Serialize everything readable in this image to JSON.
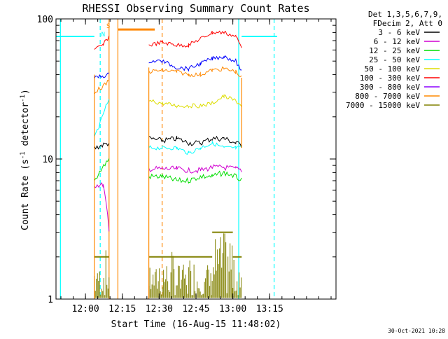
{
  "window": {
    "width": 640,
    "height": 480
  },
  "chart_data": {
    "type": "line",
    "title": "RHESSI Observing Summary Count Rates",
    "xlabel": "Start Time (16-Aug-15 11:48:02)",
    "ylabel": "Count Rate (s",
    "ylabel_sup1": "-1",
    "ylabel_mid": " detector",
    "ylabel_sup2": "-1",
    "ylabel_end": ")",
    "yscale": "log",
    "ylim": [
      1,
      100
    ],
    "xlim_minutes": [
      11.8,
      13.7
    ],
    "x_ticks": [
      {
        "label": "12:00",
        "value": 12.0
      },
      {
        "label": "12:15",
        "value": 12.25
      },
      {
        "label": "12:30",
        "value": 12.5
      },
      {
        "label": "12:45",
        "value": 12.75
      },
      {
        "label": "13:00",
        "value": 13.0
      },
      {
        "label": "13:15",
        "value": 13.25
      }
    ],
    "y_ticks": [
      {
        "label": "1",
        "value": 1
      },
      {
        "label": "10",
        "value": 10
      },
      {
        "label": "100",
        "value": 100
      }
    ],
    "legend_header": [
      "Det 1,3,5,6,7,9,",
      "FDecim 2, Att 0"
    ],
    "series": [
      {
        "name": "3 - 6 keV",
        "color": "#000000",
        "x": [
          12.06,
          12.16,
          12.43,
          12.52,
          12.62,
          12.7,
          12.78,
          12.86,
          12.94,
          13.02,
          13.06
        ],
        "y": [
          12,
          13,
          14,
          13.5,
          14,
          13,
          13,
          14,
          14,
          13,
          12.5
        ]
      },
      {
        "name": "6 - 12 keV",
        "color": "#d000d0",
        "x": [
          12.06,
          12.12,
          12.16,
          12.43,
          12.52,
          12.62,
          12.7,
          12.78,
          12.86,
          12.94,
          13.02,
          13.06
        ],
        "y": [
          6.5,
          6.5,
          3,
          8.5,
          8.5,
          8.5,
          8.3,
          8.3,
          8.7,
          8.7,
          8.5,
          8.3
        ]
      },
      {
        "name": "12 - 25 keV",
        "color": "#00dd00",
        "x": [
          12.06,
          12.16,
          12.43,
          12.52,
          12.62,
          12.7,
          12.78,
          12.86,
          12.94,
          13.02,
          13.06
        ],
        "y": [
          7,
          10,
          7.5,
          7.5,
          7,
          7,
          7.5,
          7.5,
          8,
          7.5,
          7
        ]
      },
      {
        "name": "25 - 50 keV",
        "color": "#00ffff",
        "x": [
          12.06,
          12.1,
          12.14,
          12.16,
          12.43,
          12.52,
          12.62,
          12.7,
          12.78,
          12.86,
          12.94,
          13.02,
          13.06
        ],
        "y": [
          14,
          18,
          24,
          26,
          12,
          12,
          12,
          11,
          12,
          13,
          12,
          12,
          12
        ]
      },
      {
        "name": "50 - 100 keV",
        "color": "#dddd00",
        "x": [
          12.43,
          12.52,
          12.62,
          12.7,
          12.78,
          12.86,
          12.94,
          13.02,
          13.06
        ],
        "y": [
          26,
          25,
          24,
          24,
          24,
          25,
          28,
          26,
          24
        ]
      },
      {
        "name": "100 - 300 keV",
        "color": "#ff0000",
        "x": [
          12.06,
          12.12,
          12.16,
          12.43,
          12.52,
          12.62,
          12.7,
          12.78,
          12.86,
          12.94,
          13.02,
          13.06
        ],
        "y": [
          60,
          65,
          75,
          65,
          68,
          65,
          65,
          72,
          80,
          80,
          75,
          62
        ]
      },
      {
        "name": "300 - 800 keV",
        "color": "#8b00ff",
        "x": [],
        "y": []
      },
      {
        "name": "800 - 7000 keV",
        "color": "#ff8800",
        "x": [
          12.06,
          12.12,
          12.16,
          12.43,
          12.52,
          12.62,
          12.7,
          12.78,
          12.86,
          12.94,
          13.02,
          13.06
        ],
        "y": [
          30,
          33,
          36,
          42,
          43,
          42,
          40,
          40,
          43,
          44,
          42,
          38
        ]
      },
      {
        "name": "7000 - 15000 keV",
        "color": "#808000",
        "x": [
          12.06,
          12.16,
          12.43,
          12.6,
          12.75,
          12.86,
          12.94,
          13.06
        ],
        "y": [
          2,
          2,
          2,
          2,
          2,
          2.5,
          3,
          2
        ]
      }
    ],
    "extra_series": [
      {
        "id": "blue-3-6-offset",
        "color": "#0000ff",
        "x": [
          12.06,
          12.16,
          12.43,
          12.52,
          12.62,
          12.7,
          12.78,
          12.86,
          12.94,
          13.02,
          13.06
        ],
        "y": [
          38,
          40,
          50,
          50,
          45,
          44,
          48,
          52,
          54,
          50,
          42
        ]
      }
    ],
    "annotations": [
      {
        "text": "N",
        "color": "#00ffff"
      },
      {
        "text": "S",
        "color": "#ff8800"
      }
    ],
    "vertical_lines": [
      {
        "id": "v-cyan-solid-1",
        "color": "#00ffff",
        "style": "solid",
        "x": 11.83
      },
      {
        "id": "v-cyan-dash-1",
        "color": "#00ffff",
        "style": "dash",
        "x": 12.1
      },
      {
        "id": "v-orange-solid-1",
        "color": "#ff8800",
        "style": "solid",
        "x": 12.16
      },
      {
        "id": "v-orange-solid-2",
        "color": "#ff8800",
        "style": "solid",
        "x": 12.22
      },
      {
        "id": "v-orange-dash-1",
        "color": "#ff8800",
        "style": "dash",
        "x": 12.52
      },
      {
        "id": "v-cyan-solid-2",
        "color": "#00ffff",
        "style": "solid",
        "x": 13.04
      },
      {
        "id": "v-white-dash",
        "color": "#00ffff",
        "style": "dash",
        "x": 13.28
      }
    ],
    "horizontal_segments": [
      {
        "id": "h-cyan-left",
        "color": "#00ffff",
        "x0": 11.8,
        "x1": 12.06,
        "y": 75
      },
      {
        "id": "h-cyan-right",
        "color": "#00ffff",
        "x0": 13.06,
        "x1": 13.3,
        "y": 75
      },
      {
        "id": "h-orange-saa",
        "color": "#ff8800",
        "x0": 12.22,
        "x1": 12.47,
        "y": 84
      }
    ]
  },
  "footer": {
    "timestamp": "30-Oct-2021 10:28"
  }
}
